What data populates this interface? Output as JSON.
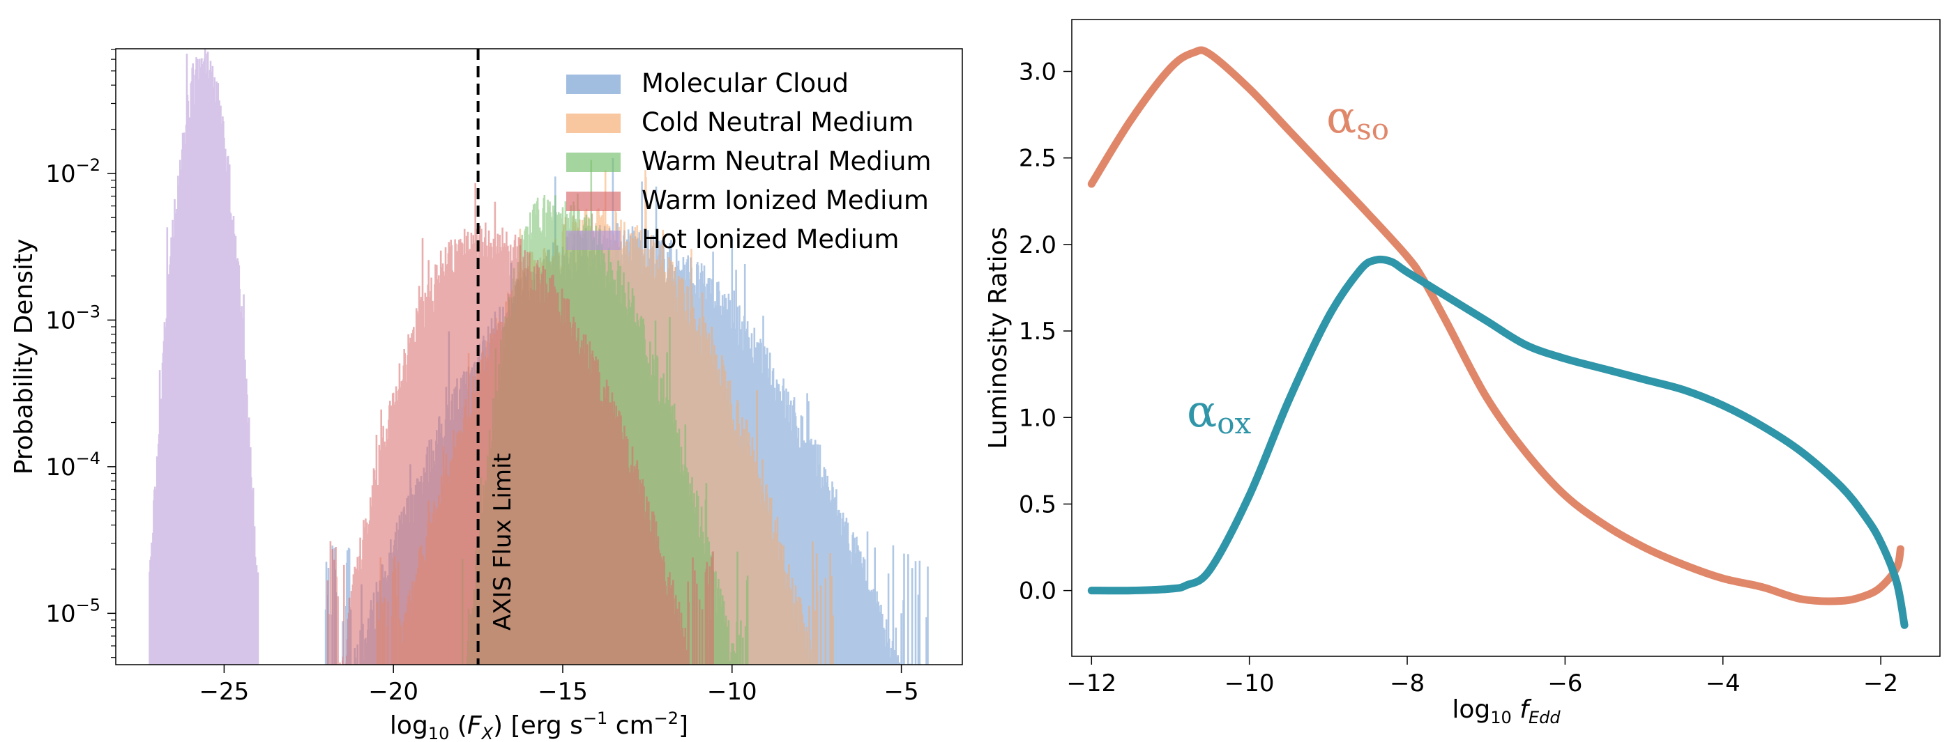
{
  "chart_data": [
    {
      "type": "histogram",
      "xlabel": "log₁₀ (F_X) [erg s⁻¹ cm⁻²]",
      "xlabel_parts": {
        "pre": "log",
        "sub": "10",
        "mid1": " (",
        "var": "F",
        "varsub": "X",
        "mid2": ") [erg s",
        "sup1": "−1",
        "mid3": " cm",
        "sup2": "−2",
        "post": "]"
      },
      "ylabel": "Probability Density",
      "yscale": "log",
      "xlim": [
        -28.2,
        -3.2
      ],
      "ylim_log10": [
        -5.35,
        -1.15
      ],
      "xticks": [
        -25,
        -20,
        -15,
        -10,
        -5
      ],
      "xtick_labels": [
        "−25",
        "−20",
        "−15",
        "−10",
        "−5"
      ],
      "yticks_exp": [
        -5,
        -4,
        -3,
        -2
      ],
      "ytick_labels": [
        "−5",
        "−4",
        "−3",
        "−2"
      ],
      "ytick_base": "10",
      "legend_position": "top-right",
      "vline": {
        "x": -17.5,
        "style": "dashed",
        "label": "AXIS Flux Limit"
      },
      "series": [
        {
          "name": "Molecular Cloud",
          "color": "#6f9bd1",
          "x_range": [
            -22,
            -4.2
          ],
          "peak_x": -13.5,
          "peak_log10_density": -2.5
        },
        {
          "name": "Cold Neutral Medium",
          "color": "#f6a96c",
          "x_range": [
            -20.5,
            -7
          ],
          "peak_x": -14,
          "peak_log10_density": -2.4
        },
        {
          "name": "Warm Neutral Medium",
          "color": "#74be6a",
          "x_range": [
            -18,
            -9.5
          ],
          "peak_x": -15.5,
          "peak_log10_density": -2.3
        },
        {
          "name": "Warm Ionized Medium",
          "color": "#d8696a",
          "x_range": [
            -22,
            -10.5
          ],
          "peak_x": -17.5,
          "peak_log10_density": -2.5
        },
        {
          "name": "Hot Ionized Medium",
          "color": "#b596d6",
          "x_range": [
            -27.2,
            -24
          ],
          "peak_x": -25.6,
          "peak_log10_density": -1.28
        }
      ]
    },
    {
      "type": "line",
      "xlabel": "log₁₀ f_Edd",
      "xlabel_parts": {
        "pre": "log",
        "sub": "10",
        "var": "f",
        "varsub": "Edd"
      },
      "ylabel": "Luminosity Ratios",
      "xlim": [
        -12.25,
        -1.25
      ],
      "ylim": [
        -0.38,
        3.3
      ],
      "xticks": [
        -12,
        -10,
        -8,
        -6,
        -4,
        -2
      ],
      "xtick_labels": [
        "−12",
        "−10",
        "−8",
        "−6",
        "−4",
        "−2"
      ],
      "yticks": [
        0.0,
        0.5,
        1.0,
        1.5,
        2.0,
        2.5,
        3.0
      ],
      "ytick_labels": [
        "0.0",
        "0.5",
        "1.0",
        "1.5",
        "2.0",
        "2.5",
        "3.0"
      ],
      "series": [
        {
          "name": "α_so",
          "label_base": "α",
          "label_sub": "so",
          "color": "#e0876a",
          "x": [
            -12,
            -11.5,
            -11,
            -10.7,
            -10.5,
            -10,
            -9.5,
            -9,
            -8.5,
            -8,
            -7.8,
            -7.5,
            -7,
            -6.5,
            -6,
            -5.5,
            -5,
            -4.5,
            -4,
            -3.5,
            -3,
            -2.5,
            -2.2,
            -2,
            -1.8,
            -1.75
          ],
          "y": [
            2.35,
            2.72,
            3.02,
            3.11,
            3.1,
            2.9,
            2.66,
            2.42,
            2.18,
            1.93,
            1.8,
            1.55,
            1.12,
            0.8,
            0.55,
            0.38,
            0.25,
            0.15,
            0.07,
            0.02,
            -0.05,
            -0.06,
            -0.03,
            0.02,
            0.13,
            0.24
          ]
        },
        {
          "name": "α_ox",
          "label_base": "α",
          "label_sub": "ox",
          "color": "#2f95a8",
          "x": [
            -12,
            -11.5,
            -11,
            -10.8,
            -10.5,
            -10,
            -9.5,
            -9,
            -8.6,
            -8.4,
            -8.2,
            -8,
            -7.5,
            -7,
            -6.5,
            -6,
            -5.5,
            -5,
            -4.5,
            -4,
            -3.5,
            -3,
            -2.5,
            -2.2,
            -2,
            -1.8,
            -1.7
          ],
          "y": [
            0.0,
            0.0,
            0.01,
            0.03,
            0.12,
            0.55,
            1.1,
            1.58,
            1.85,
            1.91,
            1.9,
            1.84,
            1.7,
            1.56,
            1.42,
            1.34,
            1.28,
            1.22,
            1.16,
            1.07,
            0.95,
            0.8,
            0.6,
            0.43,
            0.28,
            0.05,
            -0.2
          ]
        }
      ]
    }
  ]
}
